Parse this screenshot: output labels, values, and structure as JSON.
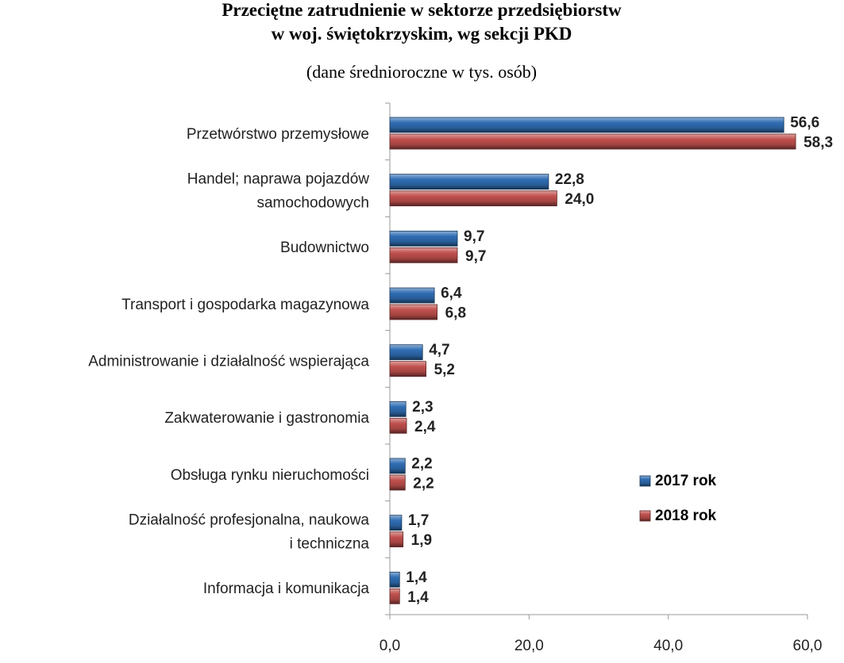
{
  "chart_data": {
    "type": "bar",
    "orientation": "horizontal",
    "title": "Przeciętne zatrudnienie w sektorze przedsiębiorstw\nw woj. świętokrzyskim, wg sekcji PKD",
    "subtitle": "(dane średnioroczne w tys. osób)",
    "categories": [
      "Przetwórstwo przemysłowe",
      "Handel; naprawa pojazdów\nsamochodowych",
      "Budownictwo",
      "Transport i gospodarka magazynowa",
      "Administrowanie i działalność wspierająca",
      "Zakwaterowanie i gastronomia",
      "Obsługa rynku nieruchomości",
      "Działalność profesjonalna, naukowa\ni techniczna",
      "Informacja i komunikacja"
    ],
    "series": [
      {
        "name": "2017 rok",
        "color": "#2f6db3",
        "label_color": "#1f6fb5",
        "values": [
          56.6,
          22.8,
          9.7,
          6.4,
          4.7,
          2.3,
          2.2,
          1.7,
          1.4
        ],
        "value_labels": [
          "56,6",
          "22,8",
          "9,7",
          "6,4",
          "4,7",
          "2,3",
          "2,2",
          "1,7",
          "1,4"
        ]
      },
      {
        "name": "2018 rok",
        "color": "#c0504d",
        "label_color": "#c0504d",
        "values": [
          58.3,
          24.0,
          9.7,
          6.8,
          5.2,
          2.4,
          2.2,
          1.9,
          1.4
        ],
        "value_labels": [
          "58,3",
          "24,0",
          "9,7",
          "6,8",
          "5,2",
          "2,4",
          "2,2",
          "1,9",
          "1,4"
        ]
      }
    ],
    "xlim": [
      0,
      60
    ],
    "xticks": [
      {
        "value": 0,
        "label": "0,0"
      },
      {
        "value": 20,
        "label": "20,0"
      },
      {
        "value": 40,
        "label": "40,0"
      },
      {
        "value": 60,
        "label": "60,0"
      }
    ],
    "grid": false,
    "legend": "right"
  }
}
